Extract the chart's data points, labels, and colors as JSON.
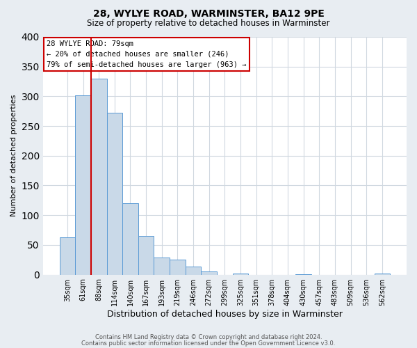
{
  "title": "28, WYLYE ROAD, WARMINSTER, BA12 9PE",
  "subtitle": "Size of property relative to detached houses in Warminster",
  "xlabel": "Distribution of detached houses by size in Warminster",
  "ylabel": "Number of detached properties",
  "bar_labels": [
    "35sqm",
    "61sqm",
    "88sqm",
    "114sqm",
    "140sqm",
    "167sqm",
    "193sqm",
    "219sqm",
    "246sqm",
    "272sqm",
    "299sqm",
    "325sqm",
    "351sqm",
    "378sqm",
    "404sqm",
    "430sqm",
    "457sqm",
    "483sqm",
    "509sqm",
    "536sqm",
    "562sqm"
  ],
  "bar_values": [
    63,
    302,
    330,
    272,
    120,
    65,
    29,
    25,
    13,
    5,
    0,
    2,
    0,
    0,
    0,
    1,
    0,
    0,
    0,
    0,
    2
  ],
  "bar_color": "#c9d9e8",
  "bar_edge_color": "#5b9bd5",
  "vline_x": 1.5,
  "vline_color": "#cc0000",
  "annotation_text_line1": "28 WYLYE ROAD: 79sqm",
  "annotation_text_line2": "← 20% of detached houses are smaller (246)",
  "annotation_text_line3": "79% of semi-detached houses are larger (963) →",
  "annotation_box_color": "#cc0000",
  "ylim": [
    0,
    400
  ],
  "yticks": [
    0,
    50,
    100,
    150,
    200,
    250,
    300,
    350,
    400
  ],
  "footer_line1": "Contains HM Land Registry data © Crown copyright and database right 2024.",
  "footer_line2": "Contains public sector information licensed under the Open Government Licence v3.0.",
  "fig_bg_color": "#e8edf2",
  "plot_bg_color": "#ffffff",
  "grid_color": "#d0d8e0"
}
